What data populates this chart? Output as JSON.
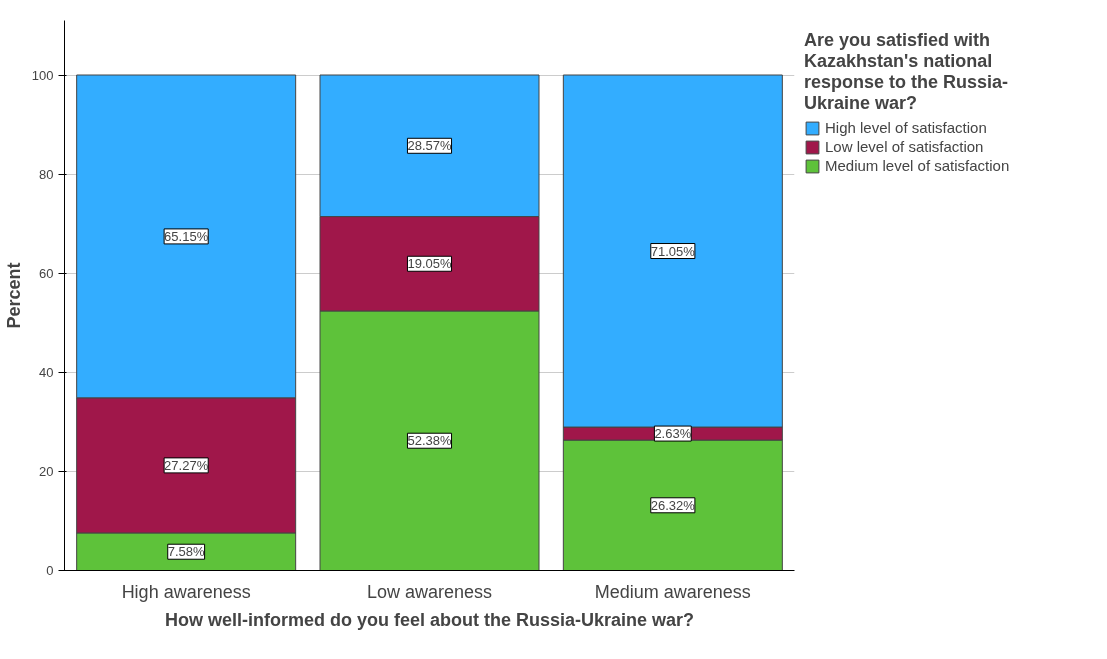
{
  "chart_data": {
    "type": "bar",
    "stacked": true,
    "xlabel": "How well-informed do you feel about the Russia-Ukraine war?",
    "ylabel": "Percent",
    "legend_title": "Are you satisfied with Kazakhstan's national response to the Russia-Ukraine war?",
    "categories": [
      "High awareness",
      "Low awareness",
      "Medium awareness"
    ],
    "series": [
      {
        "name": "Medium level of satisfaction",
        "color": "#5ec23a",
        "values": [
          7.58,
          52.38,
          26.32
        ],
        "value_labels": [
          "7.58%",
          "52.38%",
          "26.32%"
        ]
      },
      {
        "name": "Low level of satisfaction",
        "color": "#a0174a",
        "values": [
          27.27,
          19.05,
          2.63
        ],
        "value_labels": [
          "27.27%",
          "19.05%",
          "2.63%"
        ]
      },
      {
        "name": "High level of satisfaction",
        "color": "#33adff",
        "values": [
          65.15,
          28.57,
          71.05
        ],
        "value_labels": [
          "65.15%",
          "28.57%",
          "71.05%"
        ]
      }
    ],
    "ylim": [
      0,
      111
    ],
    "yticks": [
      0,
      20,
      40,
      60,
      80,
      100
    ],
    "grid": "y",
    "legend": "top right"
  }
}
